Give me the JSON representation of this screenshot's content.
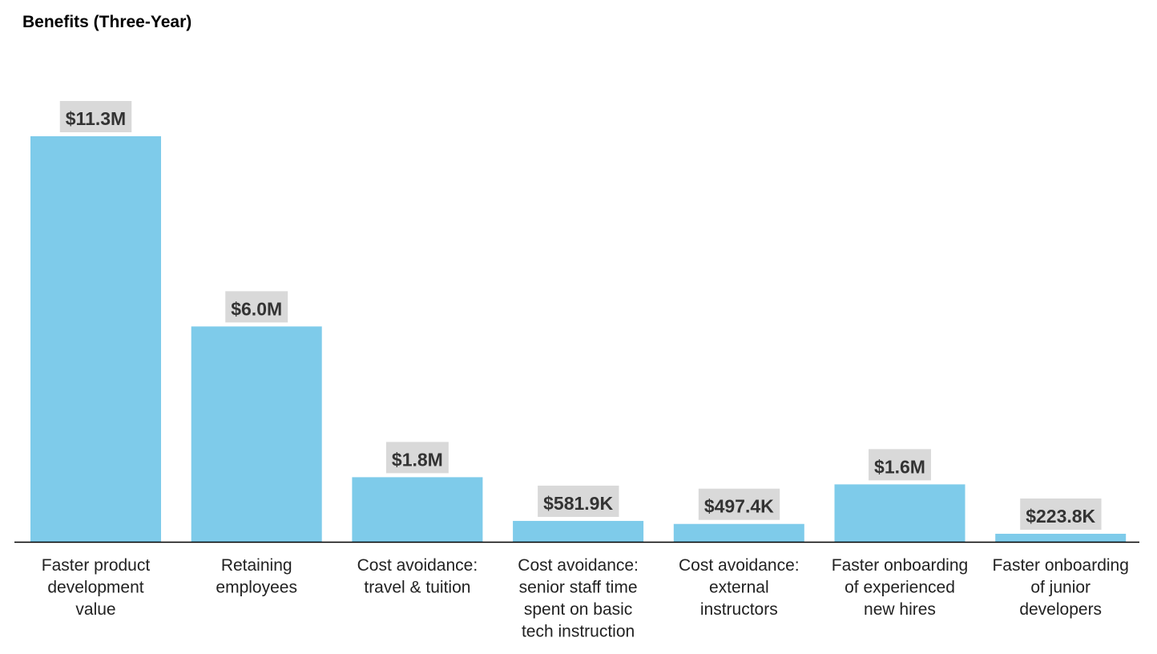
{
  "chart_data": {
    "type": "bar",
    "title": "Benefits (Three-Year)",
    "xlabel": "",
    "ylabel": "",
    "grid": false,
    "legend": "none",
    "colors": {
      "bar": "#7ecbea",
      "label_bg": "#d9d9d9",
      "axis": "#000000"
    },
    "ylim": [
      0,
      12.5
    ],
    "units": "millions USD",
    "categories": [
      [
        "Faster product",
        "development",
        "value"
      ],
      [
        "Retaining",
        "employees"
      ],
      [
        "Cost avoidance:",
        "travel & tuition"
      ],
      [
        "Cost avoidance:",
        "senior staff time",
        "spent on basic",
        "tech instruction"
      ],
      [
        "Cost avoidance:",
        "external",
        "instructors"
      ],
      [
        "Faster onboarding",
        "of experienced",
        "new hires"
      ],
      [
        "Faster onboarding",
        "of junior",
        "developers"
      ]
    ],
    "values": [
      11.3,
      6.0,
      1.8,
      0.5819,
      0.4974,
      1.6,
      0.2238
    ],
    "data_labels": [
      "$11.3M",
      "$6.0M",
      "$1.8M",
      "$581.9K",
      "$497.4K",
      "$1.6M",
      "$223.8K"
    ]
  }
}
